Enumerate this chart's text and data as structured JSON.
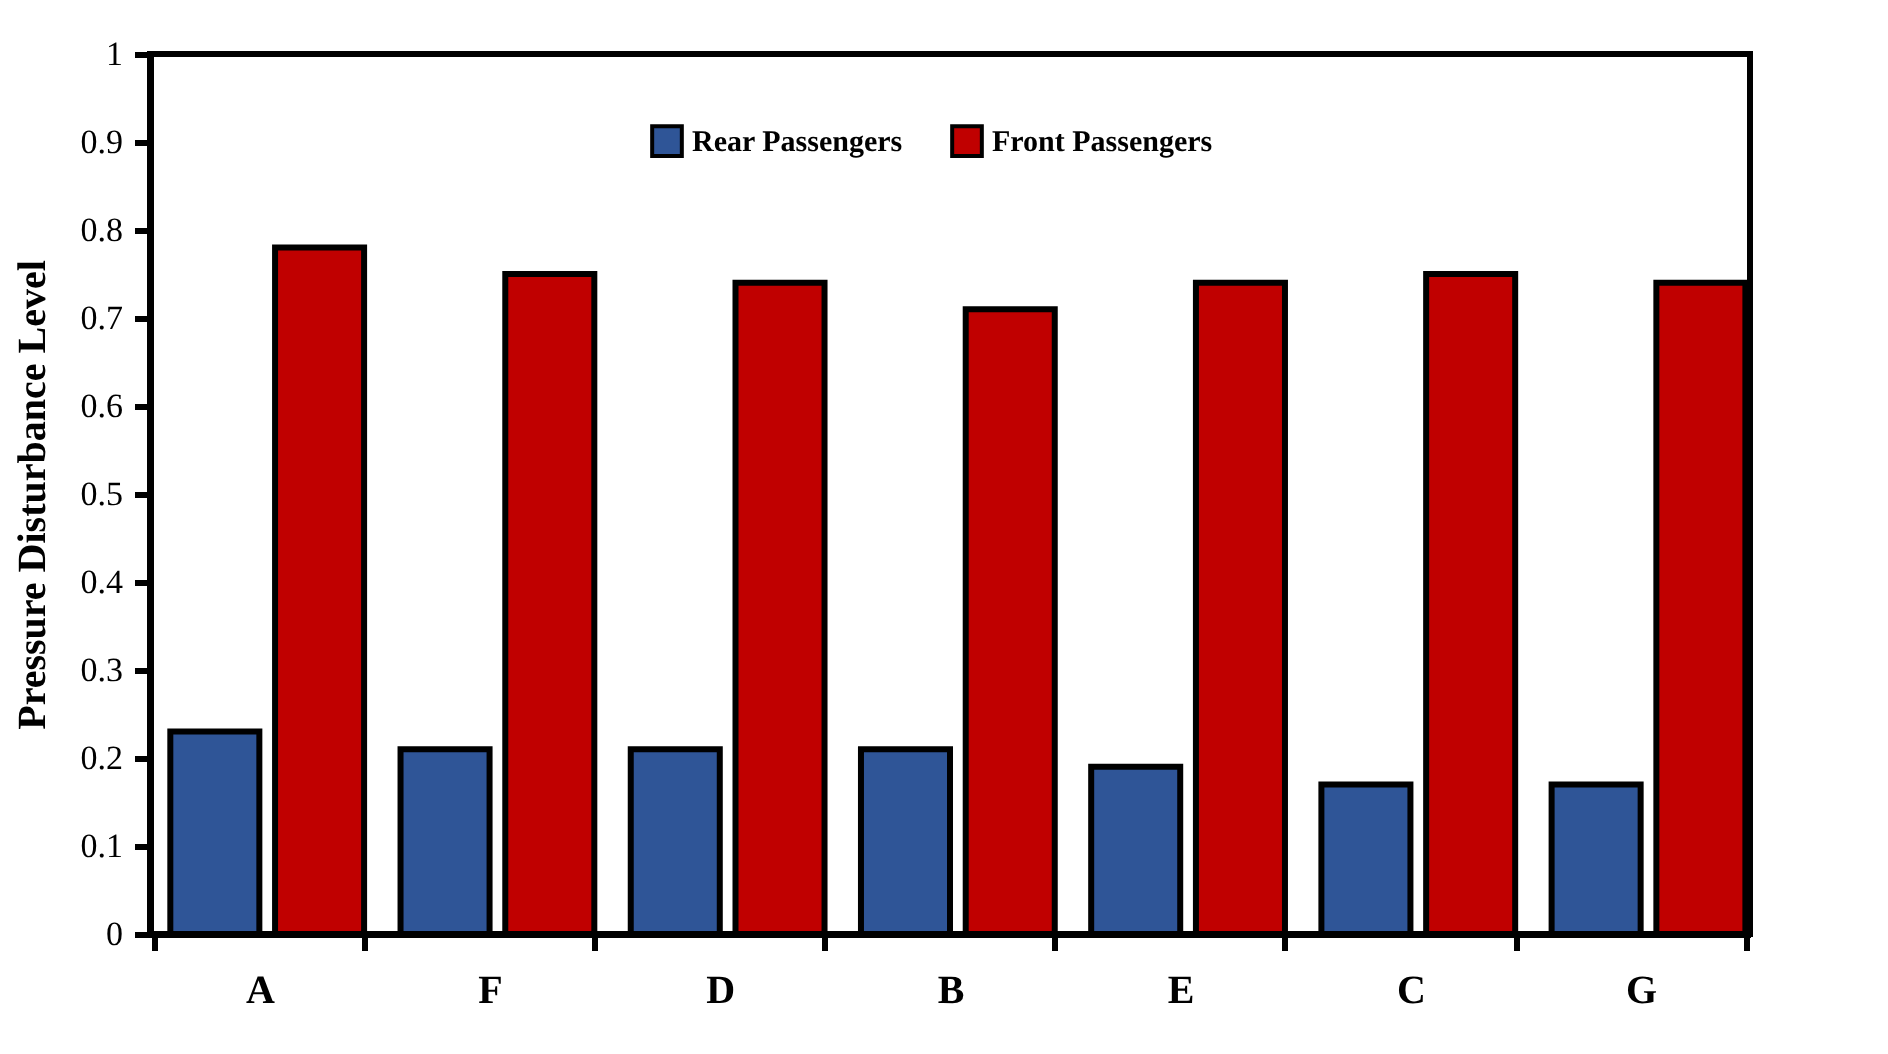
{
  "chart_data": {
    "type": "bar",
    "ylabel": "Pressure Disturbance Level",
    "categories": [
      "A",
      "F",
      "D",
      "B",
      "E",
      "C",
      "G"
    ],
    "series": [
      {
        "name": "Rear Passengers",
        "color": "#2f5597",
        "values": [
          0.23,
          0.21,
          0.21,
          0.21,
          0.19,
          0.17,
          0.17
        ]
      },
      {
        "name": "Front Passengers",
        "color": "#c00000",
        "values": [
          0.78,
          0.75,
          0.74,
          0.71,
          0.74,
          0.75,
          0.74
        ]
      }
    ],
    "ylim": [
      0,
      1
    ],
    "yticks": [
      0,
      0.1,
      0.2,
      0.3,
      0.4,
      0.5,
      0.6,
      0.7,
      0.8,
      0.9,
      1
    ],
    "grid": false,
    "legend": "top"
  }
}
